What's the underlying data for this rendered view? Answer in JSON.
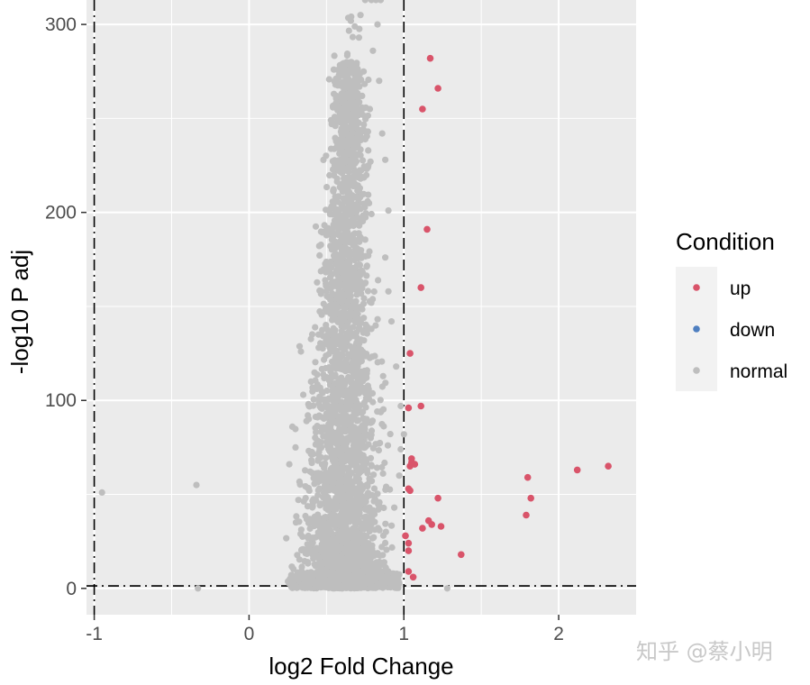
{
  "chart_data": {
    "type": "scatter",
    "title": "",
    "xlabel": "log2 Fold Change",
    "ylabel": "-log10 P adj",
    "xlim": [
      -1.05,
      2.5
    ],
    "ylim": [
      -14,
      313
    ],
    "x_ticks": [
      -1,
      0,
      1,
      2
    ],
    "x_tick_labels": [
      "-1",
      "0",
      "1",
      "2"
    ],
    "y_ticks": [
      0,
      100,
      200,
      300
    ],
    "y_tick_labels": [
      "0",
      "100",
      "200",
      "300"
    ],
    "grid": true,
    "panel_background": "#ebebeb",
    "grid_color": "#ffffff",
    "thresholds": {
      "vlines": [
        -1,
        1
      ],
      "hline": 1.3,
      "linestyle": "dotdash",
      "color": "#000000"
    },
    "legend": {
      "title": "Condition",
      "position": "right",
      "entries": [
        {
          "label": "up",
          "color": "#d9546a"
        },
        {
          "label": "down",
          "color": "#4f7fc0"
        },
        {
          "label": "normal",
          "color": "#bebebe"
        }
      ]
    },
    "series": [
      {
        "name": "up",
        "color": "#d9546a",
        "points": [
          [
            1.17,
            282
          ],
          [
            1.22,
            266
          ],
          [
            1.12,
            255
          ],
          [
            1.15,
            191
          ],
          [
            1.11,
            160
          ],
          [
            1.04,
            125
          ],
          [
            1.11,
            97
          ],
          [
            1.03,
            96
          ],
          [
            1.05,
            69
          ],
          [
            1.05,
            67
          ],
          [
            1.07,
            66
          ],
          [
            1.04,
            65
          ],
          [
            1.03,
            53
          ],
          [
            1.04,
            52
          ],
          [
            1.22,
            48
          ],
          [
            1.16,
            36
          ],
          [
            1.18,
            34
          ],
          [
            1.12,
            32
          ],
          [
            1.24,
            33
          ],
          [
            1.01,
            28
          ],
          [
            1.03,
            24
          ],
          [
            1.03,
            20
          ],
          [
            1.37,
            18
          ],
          [
            1.03,
            9
          ],
          [
            1.06,
            6
          ],
          [
            1.8,
            59
          ],
          [
            1.82,
            48
          ],
          [
            1.79,
            39
          ],
          [
            2.12,
            63
          ],
          [
            2.32,
            65
          ]
        ]
      },
      {
        "name": "down",
        "color": "#4f7fc0",
        "points": []
      },
      {
        "name": "normal",
        "color": "#bebebe",
        "points": [
          [
            -0.95,
            51
          ],
          [
            -0.34,
            55
          ],
          [
            -0.33,
            0
          ],
          [
            0.82,
            313
          ],
          [
            0.79,
            313
          ],
          [
            0.85,
            313
          ],
          [
            0.75,
            313
          ],
          [
            0.72,
            305
          ],
          [
            0.83,
            300
          ],
          [
            0.71,
            293
          ],
          [
            0.8,
            286
          ],
          [
            0.74,
            275
          ],
          [
            0.84,
            270
          ],
          [
            0.73,
            262
          ],
          [
            0.78,
            255
          ],
          [
            0.69,
            246
          ],
          [
            0.86,
            242
          ],
          [
            0.67,
            232
          ],
          [
            0.88,
            228
          ],
          [
            0.62,
            206
          ],
          [
            0.9,
            201
          ],
          [
            0.6,
            187
          ],
          [
            0.88,
            176
          ],
          [
            0.58,
            165
          ],
          [
            0.9,
            158
          ],
          [
            0.55,
            148
          ],
          [
            0.92,
            142
          ],
          [
            0.45,
            128
          ],
          [
            0.95,
            118
          ],
          [
            0.35,
            103
          ],
          [
            0.98,
            97
          ],
          [
            0.28,
            86
          ],
          [
            1.0,
            82
          ],
          [
            0.98,
            74
          ],
          [
            0.26,
            66
          ],
          [
            1.28,
            0
          ],
          [
            0.38,
            92
          ],
          [
            0.4,
            110
          ],
          [
            0.3,
            75
          ],
          [
            0.97,
            60
          ]
        ],
        "cloud": {
          "description_values": "dense cloud of several thousand genes",
          "x_range": [
            0.24,
            0.98
          ],
          "y_range": [
            0,
            300
          ]
        }
      }
    ]
  },
  "watermark": "知乎 @蔡小明"
}
